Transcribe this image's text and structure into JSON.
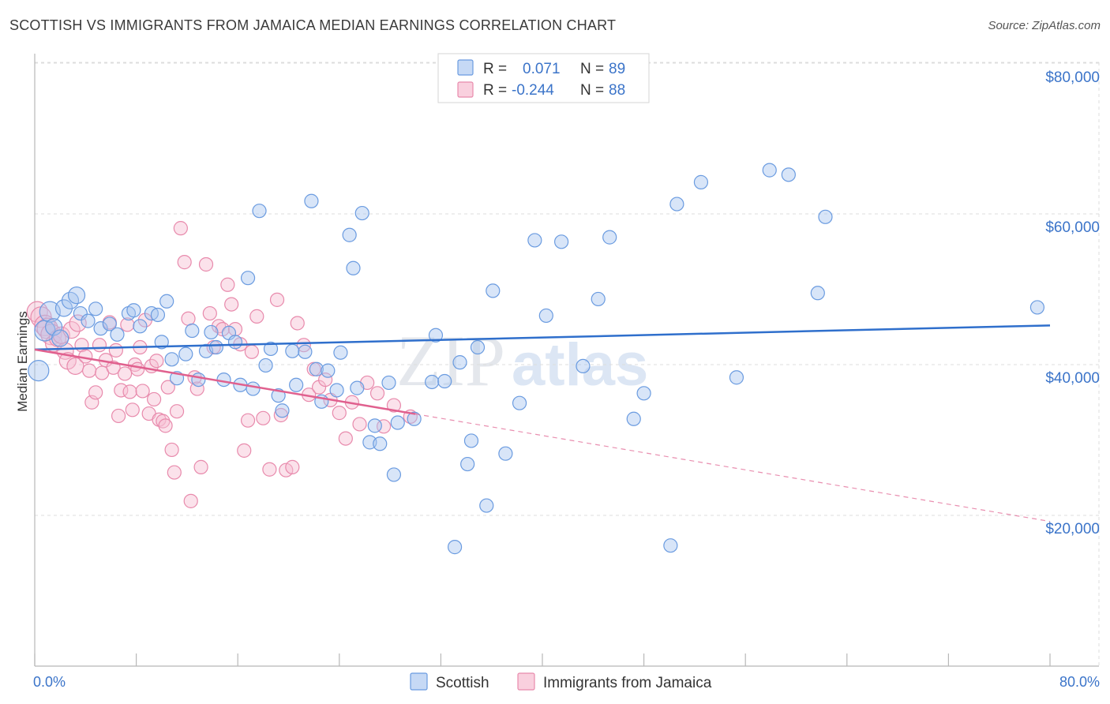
{
  "title": "SCOTTISH VS IMMIGRANTS FROM JAMAICA MEDIAN EARNINGS CORRELATION CHART",
  "source": "Source: ZipAtlas.com",
  "watermark": {
    "zip": "ZIP",
    "atlas": "atlas"
  },
  "colors": {
    "blue": "#6a9be0",
    "blue_fill": "#a9c6f0",
    "blue_line": "#2f6fcc",
    "pink": "#e88aac",
    "pink_fill": "#f6bfd2",
    "pink_line": "#e0608e",
    "tick_label": "#3b74c9"
  },
  "legend": {
    "rows": [
      {
        "r_label": "R =",
        "r_value": "0.071",
        "n_label": "N =",
        "n_value": "89"
      },
      {
        "r_label": "R =",
        "r_value": "-0.244",
        "n_label": "N =",
        "n_value": "88"
      }
    ]
  },
  "chart_data": {
    "type": "scatter",
    "title": "SCOTTISH VS IMMIGRANTS FROM JAMAICA MEDIAN EARNINGS CORRELATION CHART",
    "xlabel": "",
    "ylabel": "Median Earnings",
    "xlim": [
      0,
      80
    ],
    "ylim": [
      0,
      82000
    ],
    "x_tick_labels": [
      "0.0%",
      "80.0%"
    ],
    "y_ticks": [
      20000,
      40000,
      60000,
      80000
    ],
    "y_tick_labels": [
      "$20,000",
      "$40,000",
      "$60,000",
      "$80,000"
    ],
    "grid": true,
    "legend_position": "top-center",
    "series": [
      {
        "name": "Scottish",
        "r": 0.071,
        "n": 89,
        "trend": {
          "x": [
            0,
            80
          ],
          "y": [
            42000,
            45200
          ],
          "solid_until": 80
        },
        "points": [
          [
            0.3,
            39200
          ],
          [
            0.8,
            44500
          ],
          [
            1.2,
            47000
          ],
          [
            1.5,
            45000
          ],
          [
            2.0,
            43500
          ],
          [
            2.3,
            47500
          ],
          [
            2.8,
            48500
          ],
          [
            3.3,
            49200
          ],
          [
            3.6,
            46800
          ],
          [
            4.2,
            45800
          ],
          [
            4.8,
            47400
          ],
          [
            5.2,
            44800
          ],
          [
            5.9,
            45400
          ],
          [
            6.5,
            44000
          ],
          [
            7.4,
            46800
          ],
          [
            7.8,
            47200
          ],
          [
            8.3,
            45100
          ],
          [
            9.2,
            46800
          ],
          [
            9.7,
            46600
          ],
          [
            10.0,
            43000
          ],
          [
            10.4,
            48400
          ],
          [
            10.8,
            40700
          ],
          [
            11.2,
            38200
          ],
          [
            11.9,
            41400
          ],
          [
            12.4,
            44500
          ],
          [
            12.9,
            38000
          ],
          [
            13.5,
            41800
          ],
          [
            13.9,
            44300
          ],
          [
            14.3,
            42300
          ],
          [
            14.9,
            38000
          ],
          [
            15.3,
            44200
          ],
          [
            15.8,
            43000
          ],
          [
            16.2,
            37300
          ],
          [
            16.8,
            51500
          ],
          [
            17.2,
            36800
          ],
          [
            17.7,
            60400
          ],
          [
            18.2,
            39900
          ],
          [
            18.6,
            42100
          ],
          [
            19.2,
            35900
          ],
          [
            19.5,
            33900
          ],
          [
            20.3,
            41800
          ],
          [
            20.6,
            37300
          ],
          [
            21.3,
            41700
          ],
          [
            21.8,
            61700
          ],
          [
            22.2,
            39400
          ],
          [
            22.6,
            35100
          ],
          [
            23.1,
            39200
          ],
          [
            23.8,
            36600
          ],
          [
            24.1,
            41600
          ],
          [
            24.8,
            57200
          ],
          [
            25.1,
            52800
          ],
          [
            25.4,
            36900
          ],
          [
            25.8,
            60100
          ],
          [
            26.4,
            29700
          ],
          [
            26.8,
            31900
          ],
          [
            27.2,
            29500
          ],
          [
            27.9,
            37600
          ],
          [
            28.3,
            25400
          ],
          [
            28.6,
            32300
          ],
          [
            29.9,
            32800
          ],
          [
            31.3,
            37700
          ],
          [
            31.6,
            43900
          ],
          [
            32.3,
            37800
          ],
          [
            33.1,
            15800
          ],
          [
            33.5,
            40300
          ],
          [
            34.1,
            26800
          ],
          [
            34.4,
            29900
          ],
          [
            34.9,
            42300
          ],
          [
            35.6,
            21300
          ],
          [
            36.1,
            49800
          ],
          [
            37.1,
            28200
          ],
          [
            38.2,
            34900
          ],
          [
            39.4,
            56500
          ],
          [
            40.3,
            46500
          ],
          [
            41.5,
            56300
          ],
          [
            43.2,
            39800
          ],
          [
            44.4,
            48700
          ],
          [
            45.3,
            56900
          ],
          [
            47.2,
            32800
          ],
          [
            48.0,
            36200
          ],
          [
            50.1,
            16000
          ],
          [
            50.6,
            61300
          ],
          [
            52.5,
            64200
          ],
          [
            55.3,
            38300
          ],
          [
            57.9,
            65800
          ],
          [
            59.4,
            65200
          ],
          [
            61.7,
            49500
          ],
          [
            62.3,
            59600
          ],
          [
            79.0,
            47600
          ]
        ]
      },
      {
        "name": "Immigrants from Jamaica",
        "r": -0.244,
        "n": 88,
        "trend": {
          "x": [
            0,
            80
          ],
          "y": [
            42000,
            19200
          ],
          "solid_until": 30
        },
        "points": [
          [
            0.2,
            47000
          ],
          [
            0.5,
            46300
          ],
          [
            0.8,
            45200
          ],
          [
            1.0,
            44800
          ],
          [
            1.3,
            44000
          ],
          [
            1.5,
            42800
          ],
          [
            1.8,
            43500
          ],
          [
            2.1,
            43900
          ],
          [
            2.4,
            41800
          ],
          [
            2.6,
            40500
          ],
          [
            2.9,
            44600
          ],
          [
            3.2,
            39800
          ],
          [
            3.4,
            45500
          ],
          [
            3.7,
            42600
          ],
          [
            4.0,
            41100
          ],
          [
            4.3,
            39200
          ],
          [
            4.5,
            35000
          ],
          [
            4.8,
            36300
          ],
          [
            5.1,
            42600
          ],
          [
            5.3,
            38900
          ],
          [
            5.6,
            40600
          ],
          [
            5.9,
            45600
          ],
          [
            6.2,
            39600
          ],
          [
            6.4,
            41900
          ],
          [
            6.6,
            33200
          ],
          [
            6.8,
            36600
          ],
          [
            7.1,
            38800
          ],
          [
            7.3,
            45300
          ],
          [
            7.5,
            36400
          ],
          [
            7.7,
            34000
          ],
          [
            7.9,
            40000
          ],
          [
            8.1,
            39400
          ],
          [
            8.3,
            42300
          ],
          [
            8.5,
            36500
          ],
          [
            8.7,
            45900
          ],
          [
            9.0,
            33500
          ],
          [
            9.2,
            39800
          ],
          [
            9.4,
            35400
          ],
          [
            9.6,
            40500
          ],
          [
            9.8,
            32700
          ],
          [
            10.1,
            32500
          ],
          [
            10.3,
            31900
          ],
          [
            10.5,
            37000
          ],
          [
            10.8,
            28700
          ],
          [
            11.0,
            25700
          ],
          [
            11.2,
            33800
          ],
          [
            11.5,
            58100
          ],
          [
            11.8,
            53600
          ],
          [
            12.1,
            46100
          ],
          [
            12.3,
            21900
          ],
          [
            12.6,
            38300
          ],
          [
            12.8,
            36800
          ],
          [
            13.1,
            26400
          ],
          [
            13.5,
            53300
          ],
          [
            13.8,
            46800
          ],
          [
            14.1,
            42300
          ],
          [
            14.5,
            45100
          ],
          [
            14.8,
            44700
          ],
          [
            15.2,
            50600
          ],
          [
            15.5,
            48000
          ],
          [
            15.8,
            44700
          ],
          [
            16.2,
            42700
          ],
          [
            16.5,
            28600
          ],
          [
            16.8,
            32600
          ],
          [
            17.1,
            41700
          ],
          [
            17.5,
            46400
          ],
          [
            18.0,
            32900
          ],
          [
            18.5,
            26100
          ],
          [
            19.1,
            48600
          ],
          [
            19.4,
            33300
          ],
          [
            19.8,
            26000
          ],
          [
            20.3,
            26400
          ],
          [
            20.7,
            45500
          ],
          [
            21.2,
            42600
          ],
          [
            21.6,
            36000
          ],
          [
            22.0,
            39400
          ],
          [
            22.4,
            37000
          ],
          [
            22.9,
            38000
          ],
          [
            23.3,
            35300
          ],
          [
            24.0,
            33600
          ],
          [
            24.5,
            30200
          ],
          [
            25.0,
            35000
          ],
          [
            25.6,
            32100
          ],
          [
            26.2,
            37600
          ],
          [
            27.0,
            36200
          ],
          [
            27.5,
            31800
          ],
          [
            28.3,
            34600
          ],
          [
            29.6,
            33100
          ]
        ]
      }
    ]
  }
}
